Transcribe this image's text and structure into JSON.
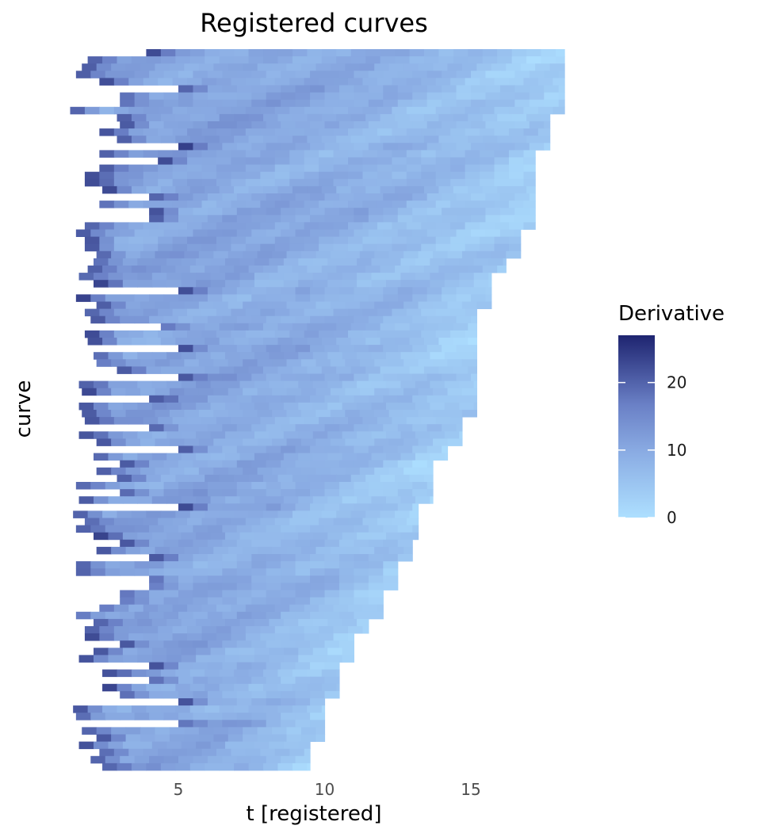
{
  "chart_data": {
    "type": "heatmap",
    "title": "Registered curves",
    "xlabel": "t [registered]",
    "ylabel": "curve",
    "x_ticks": [
      "5",
      "10",
      "15"
    ],
    "x_tick_values": [
      5,
      10,
      15
    ],
    "xlim": [
      1.1,
      18.2
    ],
    "y_tick_labels_shown": false,
    "grid": false,
    "legend": {
      "title": "Derivative",
      "position": "right",
      "ticks": [
        "0",
        "10",
        "20"
      ],
      "tick_values": [
        0,
        10,
        20
      ],
      "range": [
        0,
        27
      ],
      "colors": {
        "low": "#ADDFFF",
        "mid": "#7B98D2",
        "high": "#1E2470"
      }
    },
    "n_curves": 100,
    "curve_intervals_note": "each row spans from its registered start to end; color encodes derivative value",
    "curves": [
      {
        "start": 3.9,
        "end": 18.2
      },
      {
        "start": 1.9,
        "end": 18.2
      },
      {
        "start": 1.7,
        "end": 18.2
      },
      {
        "start": 1.5,
        "end": 18.2
      },
      {
        "start": 2.3,
        "end": 18.2
      },
      {
        "start": 5.0,
        "end": 18.2
      },
      {
        "start": 3.0,
        "end": 18.2
      },
      {
        "start": 3.0,
        "end": 18.2
      },
      {
        "start": 1.3,
        "end": 18.2
      },
      {
        "start": 2.9,
        "end": 17.7
      },
      {
        "start": 3.0,
        "end": 17.7
      },
      {
        "start": 2.3,
        "end": 17.7
      },
      {
        "start": 2.9,
        "end": 17.7
      },
      {
        "start": 5.0,
        "end": 17.7
      },
      {
        "start": 2.3,
        "end": 17.2
      },
      {
        "start": 4.3,
        "end": 17.2
      },
      {
        "start": 2.3,
        "end": 17.2
      },
      {
        "start": 1.8,
        "end": 17.2
      },
      {
        "start": 1.8,
        "end": 17.2
      },
      {
        "start": 2.4,
        "end": 17.2
      },
      {
        "start": 4.0,
        "end": 17.2
      },
      {
        "start": 2.3,
        "end": 17.2
      },
      {
        "start": 4.0,
        "end": 17.2
      },
      {
        "start": 4.0,
        "end": 17.2
      },
      {
        "start": 1.8,
        "end": 17.2
      },
      {
        "start": 1.5,
        "end": 16.7
      },
      {
        "start": 1.8,
        "end": 16.7
      },
      {
        "start": 1.8,
        "end": 16.7
      },
      {
        "start": 2.2,
        "end": 16.7
      },
      {
        "start": 2.1,
        "end": 16.2
      },
      {
        "start": 1.9,
        "end": 16.2
      },
      {
        "start": 1.6,
        "end": 15.7
      },
      {
        "start": 2.1,
        "end": 15.7
      },
      {
        "start": 5.0,
        "end": 15.7
      },
      {
        "start": 1.5,
        "end": 15.7
      },
      {
        "start": 2.2,
        "end": 15.7
      },
      {
        "start": 1.8,
        "end": 15.2
      },
      {
        "start": 2.0,
        "end": 15.2
      },
      {
        "start": 4.4,
        "end": 15.2
      },
      {
        "start": 1.8,
        "end": 15.2
      },
      {
        "start": 1.9,
        "end": 15.2
      },
      {
        "start": 5.0,
        "end": 15.2
      },
      {
        "start": 2.1,
        "end": 15.2
      },
      {
        "start": 2.2,
        "end": 15.2
      },
      {
        "start": 2.9,
        "end": 15.2
      },
      {
        "start": 5.0,
        "end": 15.2
      },
      {
        "start": 1.6,
        "end": 15.2
      },
      {
        "start": 1.7,
        "end": 15.2
      },
      {
        "start": 4.0,
        "end": 15.2
      },
      {
        "start": 1.6,
        "end": 15.2
      },
      {
        "start": 1.7,
        "end": 15.2
      },
      {
        "start": 1.8,
        "end": 14.7
      },
      {
        "start": 4.0,
        "end": 14.7
      },
      {
        "start": 1.6,
        "end": 14.7
      },
      {
        "start": 2.2,
        "end": 14.7
      },
      {
        "start": 5.0,
        "end": 14.2
      },
      {
        "start": 2.1,
        "end": 14.2
      },
      {
        "start": 3.0,
        "end": 13.7
      },
      {
        "start": 2.2,
        "end": 13.7
      },
      {
        "start": 2.9,
        "end": 13.7
      },
      {
        "start": 1.5,
        "end": 13.7
      },
      {
        "start": 3.0,
        "end": 13.7
      },
      {
        "start": 1.6,
        "end": 13.7
      },
      {
        "start": 5.0,
        "end": 13.2
      },
      {
        "start": 1.4,
        "end": 13.2
      },
      {
        "start": 1.8,
        "end": 13.2
      },
      {
        "start": 1.5,
        "end": 13.2
      },
      {
        "start": 2.1,
        "end": 13.2
      },
      {
        "start": 3.0,
        "end": 13.0
      },
      {
        "start": 2.2,
        "end": 13.0
      },
      {
        "start": 4.0,
        "end": 13.0
      },
      {
        "start": 1.5,
        "end": 12.5
      },
      {
        "start": 1.5,
        "end": 12.5
      },
      {
        "start": 4.0,
        "end": 12.5
      },
      {
        "start": 4.0,
        "end": 12.5
      },
      {
        "start": 3.0,
        "end": 12.0
      },
      {
        "start": 3.0,
        "end": 12.0
      },
      {
        "start": 2.3,
        "end": 12.0
      },
      {
        "start": 1.5,
        "end": 12.0
      },
      {
        "start": 2.1,
        "end": 11.5
      },
      {
        "start": 1.8,
        "end": 11.5
      },
      {
        "start": 1.8,
        "end": 11.0
      },
      {
        "start": 3.0,
        "end": 11.0
      },
      {
        "start": 2.1,
        "end": 11.0
      },
      {
        "start": 1.6,
        "end": 11.0
      },
      {
        "start": 4.0,
        "end": 10.5
      },
      {
        "start": 2.4,
        "end": 10.5
      },
      {
        "start": 4.0,
        "end": 10.5
      },
      {
        "start": 2.4,
        "end": 10.5
      },
      {
        "start": 3.0,
        "end": 10.5
      },
      {
        "start": 5.0,
        "end": 10.0
      },
      {
        "start": 1.4,
        "end": 10.0
      },
      {
        "start": 1.5,
        "end": 10.0
      },
      {
        "start": 5.0,
        "end": 10.0
      },
      {
        "start": 1.7,
        "end": 10.0
      },
      {
        "start": 2.2,
        "end": 10.0
      },
      {
        "start": 1.6,
        "end": 9.5
      },
      {
        "start": 2.3,
        "end": 9.5
      },
      {
        "start": 2.0,
        "end": 9.5
      },
      {
        "start": 2.4,
        "end": 9.5
      }
    ]
  }
}
